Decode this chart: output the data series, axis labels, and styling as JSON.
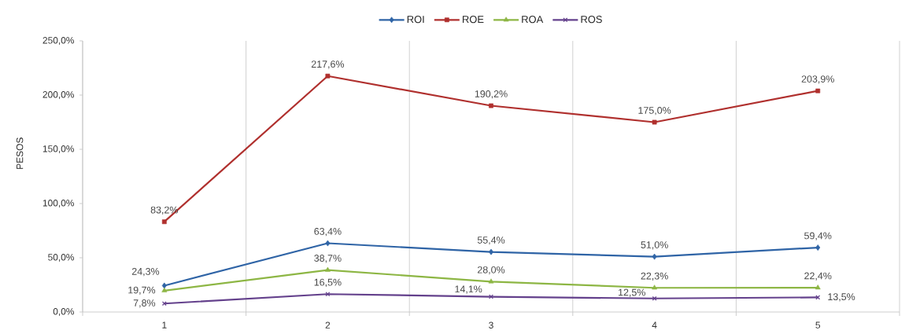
{
  "chart_data": {
    "type": "line",
    "ylabel": "PESOS",
    "categories": [
      "1",
      "2",
      "3",
      "4",
      "5"
    ],
    "series": [
      {
        "name": "ROI",
        "color": "#2f64a6",
        "marker": "diamond",
        "values": [
          24.3,
          63.4,
          55.4,
          51.0,
          59.4
        ],
        "value_labels": [
          "24,3%",
          "63,4%",
          "55,4%",
          "51,0%",
          "59,4%"
        ]
      },
      {
        "name": "ROE",
        "color": "#b0302e",
        "marker": "square",
        "values": [
          83.2,
          217.6,
          190.2,
          175.0,
          203.9
        ],
        "value_labels": [
          "83,2%",
          "217,6%",
          "190,2%",
          "175,0%",
          "203,9%"
        ]
      },
      {
        "name": "ROA",
        "color": "#8db644",
        "marker": "triangle",
        "values": [
          19.7,
          38.7,
          28.0,
          22.3,
          22.4
        ],
        "value_labels": [
          "19,7%",
          "38,7%",
          "28,0%",
          "22,3%",
          "22,4%"
        ]
      },
      {
        "name": "ROS",
        "color": "#64418c",
        "marker": "cross",
        "values": [
          7.8,
          16.5,
          14.1,
          12.5,
          13.5
        ],
        "value_labels": [
          "7,8%",
          "16,5%",
          "14,1%",
          "12,5%",
          "13,5%"
        ]
      }
    ],
    "ylim": [
      0,
      250
    ],
    "yticks": [
      {
        "value": 0,
        "label": "0,0%"
      },
      {
        "value": 50,
        "label": "50,0%"
      },
      {
        "value": 100,
        "label": "100,0%"
      },
      {
        "value": 150,
        "label": "150,0%"
      },
      {
        "value": 200,
        "label": "200,0%"
      },
      {
        "value": 250,
        "label": "250,0%"
      }
    ],
    "grid": "x",
    "legend": "top",
    "line_style": "solid"
  }
}
